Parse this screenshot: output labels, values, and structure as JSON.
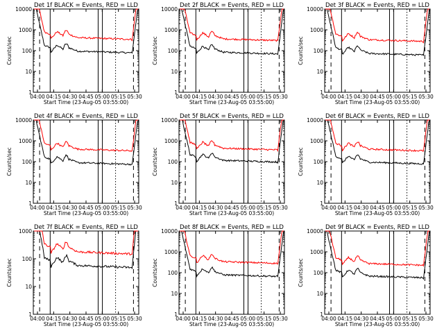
{
  "window_title": "",
  "colors": {
    "events": "#000000",
    "lld": "#ff0000",
    "background": "#ffffff",
    "axes": "#000000"
  },
  "chart_data": [
    {
      "type": "line",
      "title": "Det 1f  BLACK = Events, RED = LLD",
      "ylabel": "Counts/sec",
      "xlabel": "Start Time (23-Aug-05 03:55:00)",
      "x_ticklabels": [
        "04:00",
        "04:15",
        "04:30",
        "04:45",
        "05:00",
        "05:15",
        "05:30"
      ],
      "y_ticklabels": [
        "1",
        "10",
        "100",
        "1000",
        "10000"
      ],
      "ylim": [
        1,
        10000
      ],
      "yscale": "log",
      "grid": false,
      "series": [
        {
          "name": "Events",
          "color": "#000000",
          "level": 90
        },
        {
          "name": "LLD",
          "color": "#ff0000",
          "level": 400
        }
      ]
    },
    {
      "type": "line",
      "title": "Det 2f  BLACK = Events, RED = LLD",
      "ylabel": "Counts/sec",
      "xlabel": "Start Time (23-Aug-05 03:55:00)",
      "x_ticklabels": [
        "04:00",
        "04:15",
        "04:30",
        "04:45",
        "05:00",
        "05:15",
        "05:30"
      ],
      "y_ticklabels": [
        "1",
        "10",
        "100",
        "1000",
        "10000"
      ],
      "ylim": [
        1,
        10000
      ],
      "yscale": "log",
      "grid": false,
      "series": [
        {
          "name": "Events",
          "color": "#000000",
          "level": 80
        },
        {
          "name": "LLD",
          "color": "#ff0000",
          "level": 350
        }
      ]
    },
    {
      "type": "line",
      "title": "Det 3f  BLACK = Events, RED = LLD",
      "ylabel": "Counts/sec",
      "xlabel": "Start Time (23-Aug-05 03:55:00)",
      "x_ticklabels": [
        "04:00",
        "04:15",
        "04:30",
        "04:45",
        "05:00",
        "05:15",
        "05:30"
      ],
      "y_ticklabels": [
        "1",
        "10",
        "100",
        "1000",
        "10000"
      ],
      "ylim": [
        1,
        10000
      ],
      "yscale": "log",
      "grid": false,
      "series": [
        {
          "name": "Events",
          "color": "#000000",
          "level": 70
        },
        {
          "name": "LLD",
          "color": "#ff0000",
          "level": 320
        }
      ]
    },
    {
      "type": "line",
      "title": "Det 4f  BLACK = Events, RED = LLD",
      "ylabel": "Counts/sec",
      "xlabel": "Start Time (23-Aug-05 03:55:00)",
      "x_ticklabels": [
        "04:00",
        "04:15",
        "04:30",
        "04:45",
        "05:00",
        "05:15",
        "05:30"
      ],
      "y_ticklabels": [
        "1",
        "10",
        "100",
        "1000",
        "10000"
      ],
      "ylim": [
        1,
        10000
      ],
      "yscale": "log",
      "grid": false,
      "series": [
        {
          "name": "Events",
          "color": "#000000",
          "level": 85
        },
        {
          "name": "LLD",
          "color": "#ff0000",
          "level": 380
        }
      ]
    },
    {
      "type": "line",
      "title": "Det 5f  BLACK = Events, RED = LLD",
      "ylabel": "Counts/sec",
      "xlabel": "Start Time (23-Aug-05 03:55:00)",
      "x_ticklabels": [
        "04:00",
        "04:15",
        "04:30",
        "04:45",
        "05:00",
        "05:15",
        "05:30"
      ],
      "y_ticklabels": [
        "1",
        "10",
        "100",
        "1000",
        "10000"
      ],
      "ylim": [
        1,
        10000
      ],
      "yscale": "log",
      "grid": false,
      "series": [
        {
          "name": "Events",
          "color": "#000000",
          "level": 110
        },
        {
          "name": "LLD",
          "color": "#ff0000",
          "level": 420
        }
      ]
    },
    {
      "type": "line",
      "title": "Det 6f  BLACK = Events, RED = LLD",
      "ylabel": "Counts/sec",
      "xlabel": "Start Time (23-Aug-05 03:55:00)",
      "x_ticklabels": [
        "04:00",
        "04:15",
        "04:30",
        "04:45",
        "05:00",
        "05:15",
        "05:30"
      ],
      "y_ticklabels": [
        "1",
        "10",
        "100",
        "1000",
        "10000"
      ],
      "ylim": [
        1,
        10000
      ],
      "yscale": "log",
      "grid": false,
      "series": [
        {
          "name": "Events",
          "color": "#000000",
          "level": 90
        },
        {
          "name": "LLD",
          "color": "#ff0000",
          "level": 380
        }
      ]
    },
    {
      "type": "line",
      "title": "Det 7f  BLACK = Events, RED = LLD",
      "ylabel": "Counts/sec",
      "xlabel": "Start Time (23-Aug-05 03:55:00)",
      "x_ticklabels": [
        "04:00",
        "04:15",
        "04:30",
        "04:45",
        "05:00",
        "05:15",
        "05:30"
      ],
      "y_ticklabels": [
        "1",
        "10",
        "100",
        "1000"
      ],
      "ylim": [
        1,
        1000
      ],
      "yscale": "log",
      "grid": false,
      "series": [
        {
          "name": "Events",
          "color": "#000000",
          "level": 55
        },
        {
          "name": "LLD",
          "color": "#ff0000",
          "level": 170
        }
      ]
    },
    {
      "type": "line",
      "title": "Det 8f  BLACK = Events, RED = LLD",
      "ylabel": "Counts/sec",
      "xlabel": "Start Time (23-Aug-05 03:55:00)",
      "x_ticklabels": [
        "04:00",
        "04:15",
        "04:30",
        "04:45",
        "05:00",
        "05:15",
        "05:30"
      ],
      "y_ticklabels": [
        "1",
        "10",
        "100",
        "1000",
        "10000"
      ],
      "ylim": [
        1,
        10000
      ],
      "yscale": "log",
      "grid": false,
      "series": [
        {
          "name": "Events",
          "color": "#000000",
          "level": 75
        },
        {
          "name": "LLD",
          "color": "#ff0000",
          "level": 320
        }
      ]
    },
    {
      "type": "line",
      "title": "Det 9f  BLACK = Events, RED = LLD",
      "ylabel": "Counts/sec",
      "xlabel": "Start Time (23-Aug-05 03:55:00)",
      "x_ticklabels": [
        "04:00",
        "04:15",
        "04:30",
        "04:45",
        "05:00",
        "05:15",
        "05:30"
      ],
      "y_ticklabels": [
        "1",
        "10",
        "100",
        "1000",
        "10000"
      ],
      "ylim": [
        1,
        10000
      ],
      "yscale": "log",
      "grid": false,
      "series": [
        {
          "name": "Events",
          "color": "#000000",
          "level": 65
        },
        {
          "name": "LLD",
          "color": "#ff0000",
          "level": 260
        }
      ]
    }
  ]
}
